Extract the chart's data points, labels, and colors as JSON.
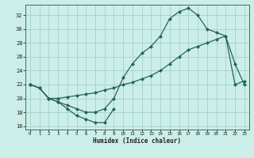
{
  "xlabel": "Humidex (Indice chaleur)",
  "bg_color": "#cceee8",
  "grid_color": "#aad4ce",
  "line_color": "#226655",
  "xlim": [
    -0.5,
    23.5
  ],
  "ylim": [
    15.5,
    33.5
  ],
  "xticks": [
    0,
    1,
    2,
    3,
    4,
    5,
    6,
    7,
    8,
    9,
    10,
    11,
    12,
    13,
    14,
    15,
    16,
    17,
    18,
    19,
    20,
    21,
    22,
    23
  ],
  "yticks": [
    16,
    18,
    20,
    22,
    24,
    26,
    28,
    30,
    32
  ],
  "curve1_x": [
    0,
    1,
    2,
    3,
    4,
    5,
    6,
    7,
    8,
    9
  ],
  "curve1_y": [
    22,
    21.5,
    20,
    19.5,
    18.5,
    17.5,
    17.0,
    16.5,
    16.5,
    18.5
  ],
  "curve2_x": [
    0,
    1,
    2,
    3,
    4,
    5,
    6,
    7,
    8,
    9,
    10,
    11,
    12,
    13,
    14,
    15,
    16,
    17,
    18,
    19,
    20,
    21,
    22,
    23
  ],
  "curve2_y": [
    22,
    21.5,
    20,
    19.5,
    19.0,
    18.5,
    18.0,
    18.0,
    18.5,
    20.0,
    23.0,
    25.0,
    26.5,
    27.5,
    29.0,
    31.5,
    32.5,
    33.0,
    32.0,
    30.0,
    29.5,
    29.0,
    25.0,
    22.0
  ],
  "curve3_x": [
    0,
    1,
    2,
    3,
    4,
    5,
    6,
    7,
    8,
    9,
    10,
    11,
    12,
    13,
    14,
    15,
    16,
    17,
    18,
    19,
    20,
    21,
    22,
    23
  ],
  "curve3_y": [
    22,
    21.5,
    20,
    20,
    20.2,
    20.4,
    20.6,
    20.8,
    21.2,
    21.5,
    22.0,
    22.3,
    22.8,
    23.3,
    24.0,
    25.0,
    26.0,
    27.0,
    27.5,
    28.0,
    28.5,
    29.0,
    22.0,
    22.5
  ]
}
